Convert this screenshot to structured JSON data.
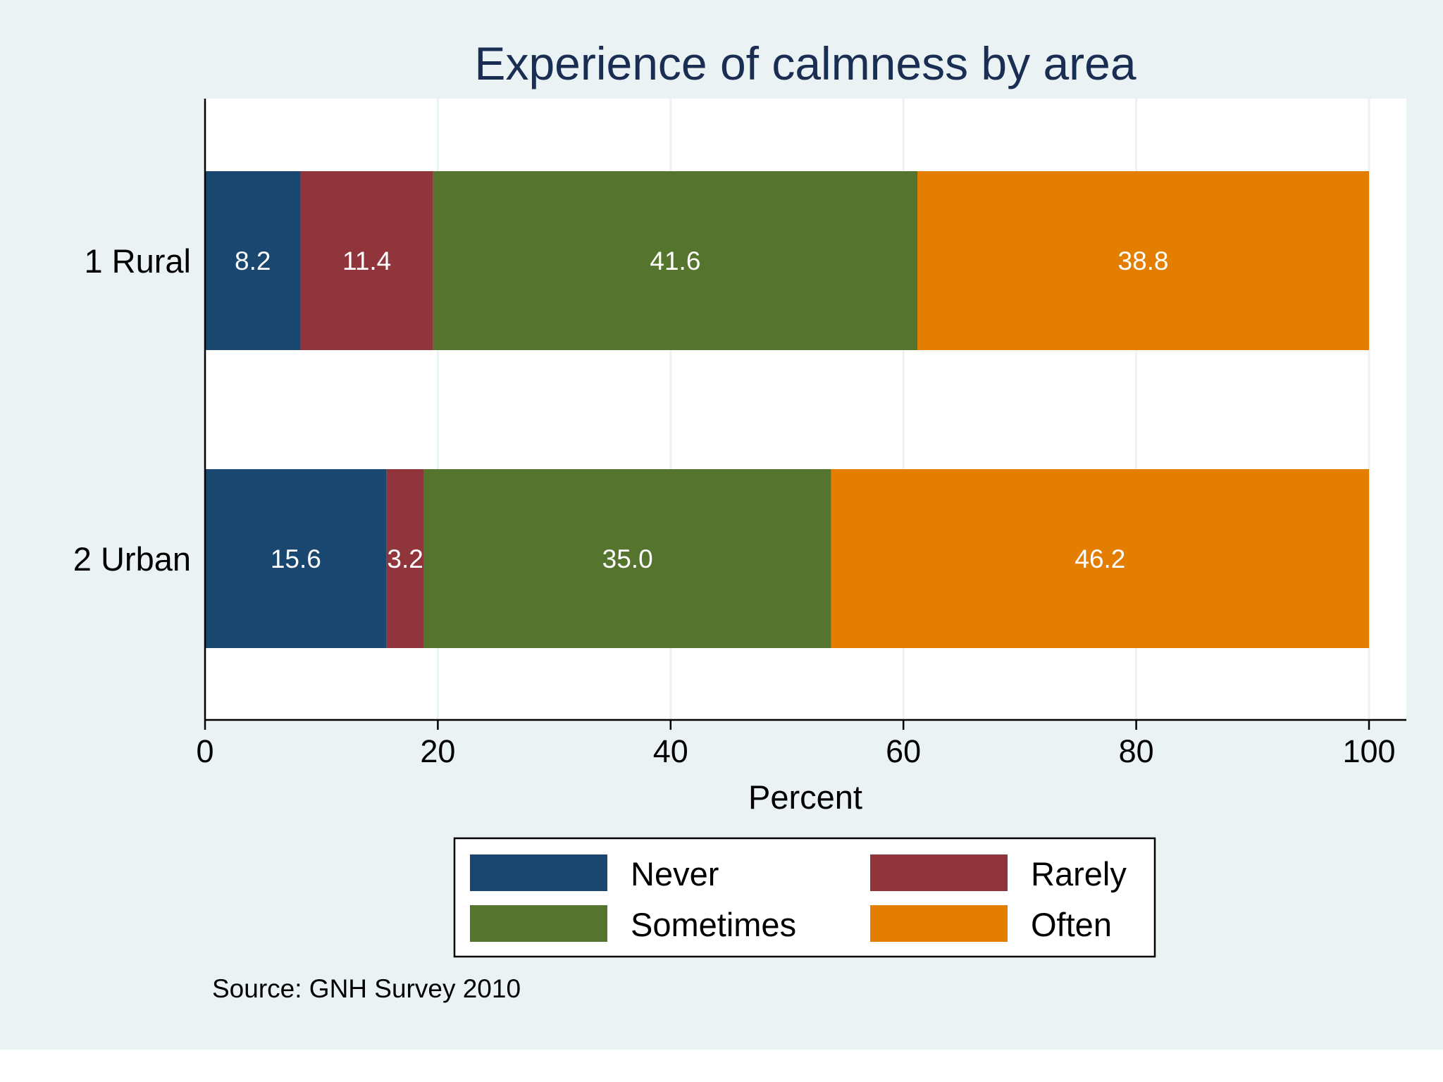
{
  "chart_data": {
    "type": "bar",
    "orientation": "horizontal",
    "stacked": true,
    "title": "Experience of calmness by area",
    "xlabel": "Percent",
    "ylabel": "",
    "xlim": [
      0,
      100
    ],
    "x_ticks": [
      "0",
      "20",
      "40",
      "60",
      "80",
      "100"
    ],
    "x_tick_values": [
      0,
      20,
      40,
      60,
      80,
      100
    ],
    "grid": true,
    "categories": [
      "1 Rural",
      "2 Urban"
    ],
    "series": [
      {
        "name": "Never",
        "color": "#1a476f",
        "values": [
          8.2,
          15.6
        ],
        "labels": [
          "8.2",
          "15.6"
        ]
      },
      {
        "name": "Rarely",
        "color": "#90353b",
        "values": [
          11.4,
          3.2
        ],
        "labels": [
          "11.4",
          "3.2"
        ]
      },
      {
        "name": "Sometimes",
        "color": "#55752f",
        "values": [
          41.6,
          35.0
        ],
        "labels": [
          "41.6",
          "35.0"
        ]
      },
      {
        "name": "Often",
        "color": "#e37e00",
        "values": [
          38.8,
          46.2
        ],
        "labels": [
          "38.8",
          "46.2"
        ]
      }
    ],
    "legend_position": "bottom",
    "note": "Source: GNH Survey 2010"
  },
  "colors": {
    "background": "#eaf2f3",
    "plot_background": "#ffffff",
    "gridline": "#eaf2f3",
    "title": "#1a2d53"
  }
}
